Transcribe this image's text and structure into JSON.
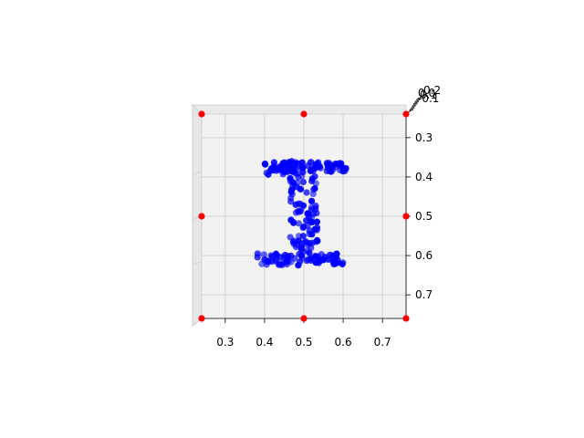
{
  "chart_data": {
    "type": "scatter",
    "projection": "3d",
    "view": "top-down",
    "title": "",
    "xlabel": "",
    "ylabel": "",
    "zlabel": "",
    "xlim": [
      0.24,
      0.76
    ],
    "ylim": [
      0.24,
      0.76
    ],
    "y_inverted": true,
    "grid": true,
    "x_ticks": [
      0.3,
      0.4,
      0.5,
      0.6,
      0.7
    ],
    "x_tick_labels": [
      "0.3",
      "0.4",
      "0.5",
      "0.6",
      "0.7"
    ],
    "y_ticks": [
      0.3,
      0.4,
      0.5,
      0.6,
      0.7
    ],
    "y_tick_labels": [
      "0.3",
      "0.4",
      "0.5",
      "0.6",
      "0.7"
    ],
    "z_tick_labels": [
      "0.2",
      "0.1",
      "0.0",
      "-0.1"
    ],
    "series": [
      {
        "color": "#0000ff",
        "marker": "circle",
        "shape_regions": [
          {
            "x": [
              0.4,
              0.6
            ],
            "y": [
              0.36,
              0.385
            ]
          },
          {
            "x": [
              0.38,
              0.48
            ],
            "y": [
              0.375,
              0.395
            ]
          },
          {
            "x": [
              0.55,
              0.61
            ],
            "y": [
              0.365,
              0.39
            ]
          },
          {
            "x": [
              0.465,
              0.535
            ],
            "y": [
              0.38,
              0.61
            ]
          },
          {
            "x": [
              0.38,
              0.6
            ],
            "y": [
              0.595,
              0.625
            ]
          }
        ]
      },
      {
        "color": "#ff0000",
        "marker": "circle",
        "points": [
          {
            "x": 0.24,
            "y": 0.24
          },
          {
            "x": 0.5,
            "y": 0.24
          },
          {
            "x": 0.76,
            "y": 0.24
          },
          {
            "x": 0.24,
            "y": 0.5
          },
          {
            "x": 0.76,
            "y": 0.5
          },
          {
            "x": 0.24,
            "y": 0.76
          },
          {
            "x": 0.5,
            "y": 0.76
          },
          {
            "x": 0.76,
            "y": 0.76
          }
        ]
      }
    ]
  }
}
